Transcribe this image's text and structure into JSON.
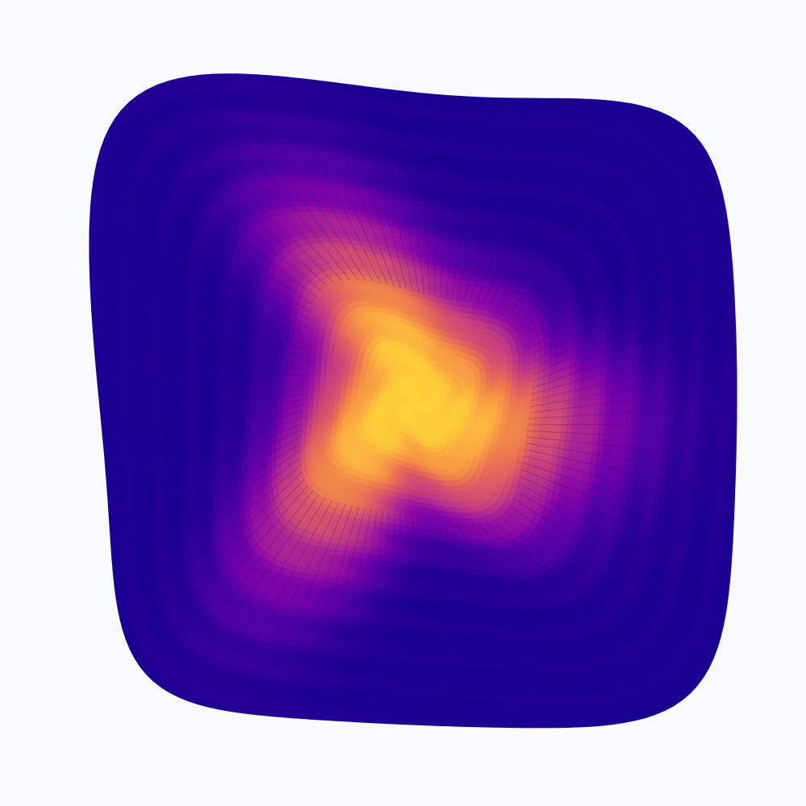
{
  "artwork": {
    "background": "#f8f9fa",
    "colormap": "plasma",
    "palette": [
      "#1a0090",
      "#2d0197",
      "#4b03a1",
      "#6a00a8",
      "#8b0aa5",
      "#a51f97",
      "#bd3786",
      "#d24e70",
      "#e4685b",
      "#f2844b",
      "#f9a242",
      "#fcc23d",
      "#fdd13a"
    ],
    "edge_color": "#1b0a94",
    "wedges": 240,
    "rings": 60,
    "petals": 3
  }
}
